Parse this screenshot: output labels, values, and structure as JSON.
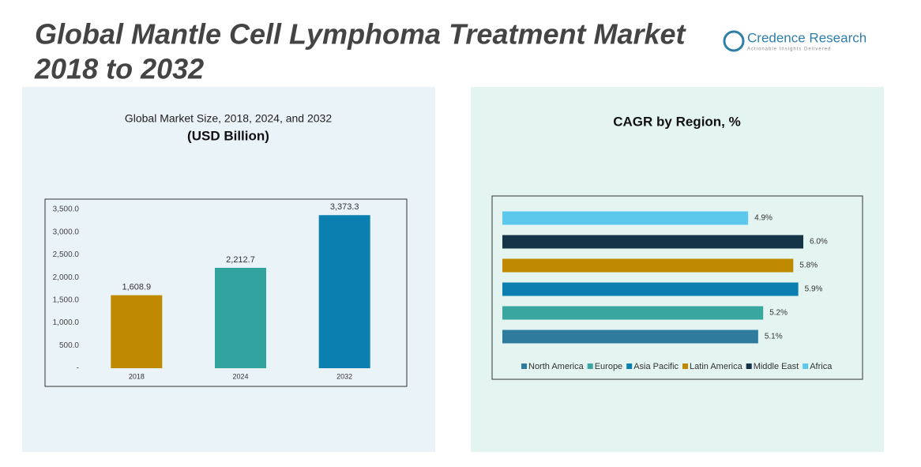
{
  "header": {
    "title": [
      "Global Mantle Cell Lymphoma Treatment Market",
      "2018 to 2032"
    ],
    "brand": "Credence Research",
    "tagline": "Actionable Insights Delivered"
  },
  "chart_data": [
    {
      "type": "bar",
      "title": "Global Market Size, 2018, 2024, and 2032",
      "subtitle": "(USD Billion)",
      "categories": [
        "2018",
        "2024",
        "2032"
      ],
      "values": [
        1608.9,
        2212.7,
        3373.3
      ],
      "value_labels": [
        "1,608.9",
        "2,212.7",
        "3,373.3"
      ],
      "colors": [
        "#c08a00",
        "#33a39f",
        "#0a7fb0"
      ],
      "ylim": [
        0,
        3500
      ],
      "yticks": [
        {
          "value": 0,
          "label": "-"
        },
        {
          "value": 500,
          "label": "500.0"
        },
        {
          "value": 1000,
          "label": "1,000.0"
        },
        {
          "value": 1500,
          "label": "1,500.0"
        },
        {
          "value": 2000,
          "label": "2,000.0"
        },
        {
          "value": 2500,
          "label": "2,500.0"
        },
        {
          "value": 3000,
          "label": "3,000.0"
        },
        {
          "value": 3500,
          "label": "3,500.0"
        }
      ],
      "grid": false
    },
    {
      "type": "hbar",
      "title": "CAGR by Region, %",
      "categories": [
        "North America",
        "Europe",
        "Asia Pacific",
        "Latin America",
        "Middle East",
        "Africa"
      ],
      "values": [
        5.1,
        5.2,
        5.9,
        5.8,
        6.0,
        4.9
      ],
      "value_labels": [
        "5.1%",
        "5.2%",
        "5.9%",
        "5.8%",
        "6.0%",
        "4.9%"
      ],
      "colors": [
        "#2e7b9e",
        "#3aa6a0",
        "#0b80b0",
        "#c08a00",
        "#143447",
        "#5bc8ec"
      ],
      "legend": "bottom"
    }
  ]
}
